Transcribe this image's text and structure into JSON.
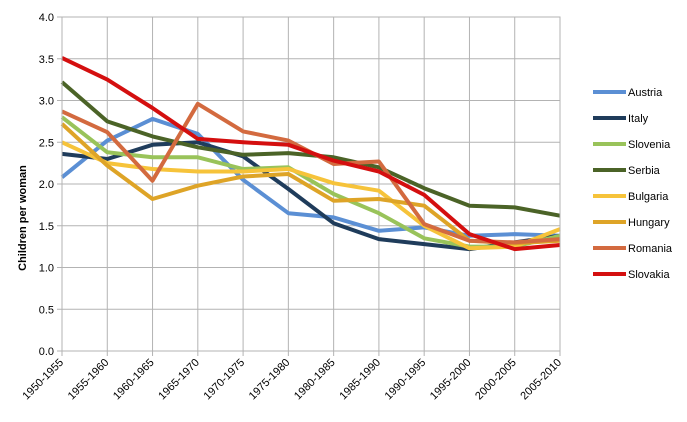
{
  "chart_data": {
    "type": "line",
    "title": "",
    "xlabel": "",
    "ylabel": "Children per woman",
    "ylim": [
      0,
      4
    ],
    "yticks": [
      "0.0",
      "0.5",
      "1.0",
      "1.5",
      "2.0",
      "2.5",
      "3.0",
      "3.5",
      "4.0"
    ],
    "grid": true,
    "legend": "right",
    "categories": [
      "1950-1955",
      "1955-1960",
      "1960-1965",
      "1965-1970",
      "1970-1975",
      "1975-1980",
      "1980-1985",
      "1985-1990",
      "1990-1995",
      "1995-2000",
      "2000-2005",
      "2005-2010"
    ],
    "series": [
      {
        "name": "Austria",
        "color": "#5b8fd4",
        "values": [
          2.08,
          2.52,
          2.78,
          2.6,
          2.05,
          1.65,
          1.6,
          1.44,
          1.48,
          1.38,
          1.4,
          1.38
        ]
      },
      {
        "name": "Italy",
        "color": "#1f3c5b",
        "values": [
          2.36,
          2.3,
          2.47,
          2.5,
          2.33,
          1.94,
          1.53,
          1.34,
          1.28,
          1.22,
          1.3,
          1.38
        ]
      },
      {
        "name": "Slovenia",
        "color": "#99c35a",
        "values": [
          2.8,
          2.38,
          2.32,
          2.32,
          2.18,
          2.2,
          1.88,
          1.65,
          1.35,
          1.25,
          1.25,
          1.38
        ]
      },
      {
        "name": "Serbia",
        "color": "#4b6327",
        "values": [
          3.22,
          2.75,
          2.57,
          2.44,
          2.35,
          2.37,
          2.32,
          2.2,
          1.95,
          1.74,
          1.72,
          1.62
        ]
      },
      {
        "name": "Bulgaria",
        "color": "#f6c33a",
        "values": [
          2.5,
          2.25,
          2.18,
          2.15,
          2.15,
          2.18,
          2.01,
          1.92,
          1.5,
          1.23,
          1.25,
          1.46
        ]
      },
      {
        "name": "Hungary",
        "color": "#dea427",
        "values": [
          2.72,
          2.22,
          1.82,
          1.98,
          2.09,
          2.12,
          1.8,
          1.82,
          1.74,
          1.32,
          1.29,
          1.32
        ]
      },
      {
        "name": "Romania",
        "color": "#d36a3f",
        "values": [
          2.87,
          2.62,
          2.04,
          2.96,
          2.63,
          2.52,
          2.24,
          2.27,
          1.52,
          1.32,
          1.3,
          1.34
        ]
      },
      {
        "name": "Slovakia",
        "color": "#d40f0f",
        "values": [
          3.51,
          3.25,
          2.91,
          2.54,
          2.5,
          2.47,
          2.28,
          2.15,
          1.87,
          1.4,
          1.22,
          1.27
        ]
      }
    ]
  }
}
